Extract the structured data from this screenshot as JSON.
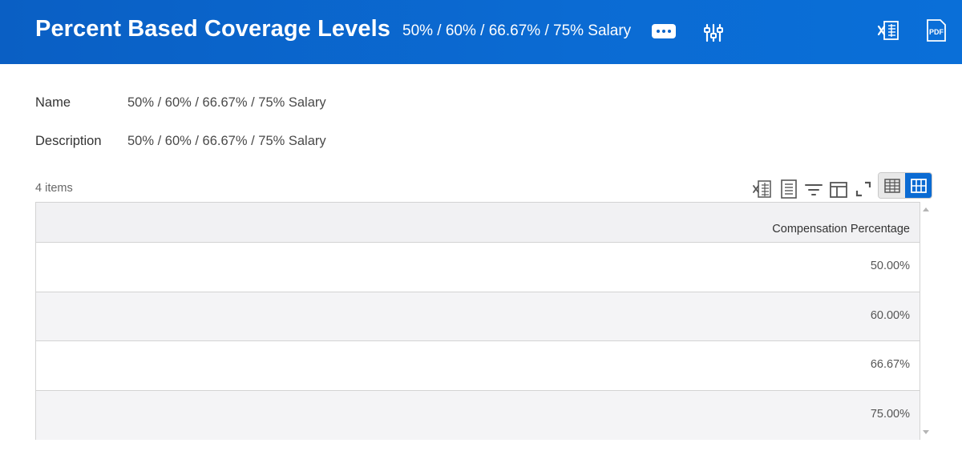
{
  "header": {
    "title": "Percent Based Coverage Levels",
    "subtitle": "50% / 60% / 66.67% / 75% Salary",
    "background_color": "#0b6bd3",
    "icons": [
      "more-actions-icon",
      "related-actions-icon",
      "export-excel-icon",
      "export-pdf-icon"
    ]
  },
  "fields": [
    {
      "label": "Name",
      "value": "50% / 60% / 66.67% / 75% Salary"
    },
    {
      "label": "Description",
      "value": "50% / 60% / 66.67% / 75% Salary"
    }
  ],
  "table": {
    "items_count": "4 items",
    "toolbar_icons": [
      "export-excel-icon",
      "print-icon",
      "filter-icon",
      "configure-columns-icon",
      "fullscreen-icon",
      "table-view-icon",
      "grid-view-icon"
    ],
    "columns": [
      "Compensation Percentage"
    ],
    "rows": [
      {
        "compensation_percentage": "50.00%"
      },
      {
        "compensation_percentage": "60.00%"
      },
      {
        "compensation_percentage": "66.67%"
      },
      {
        "compensation_percentage": "75.00%"
      }
    ]
  }
}
